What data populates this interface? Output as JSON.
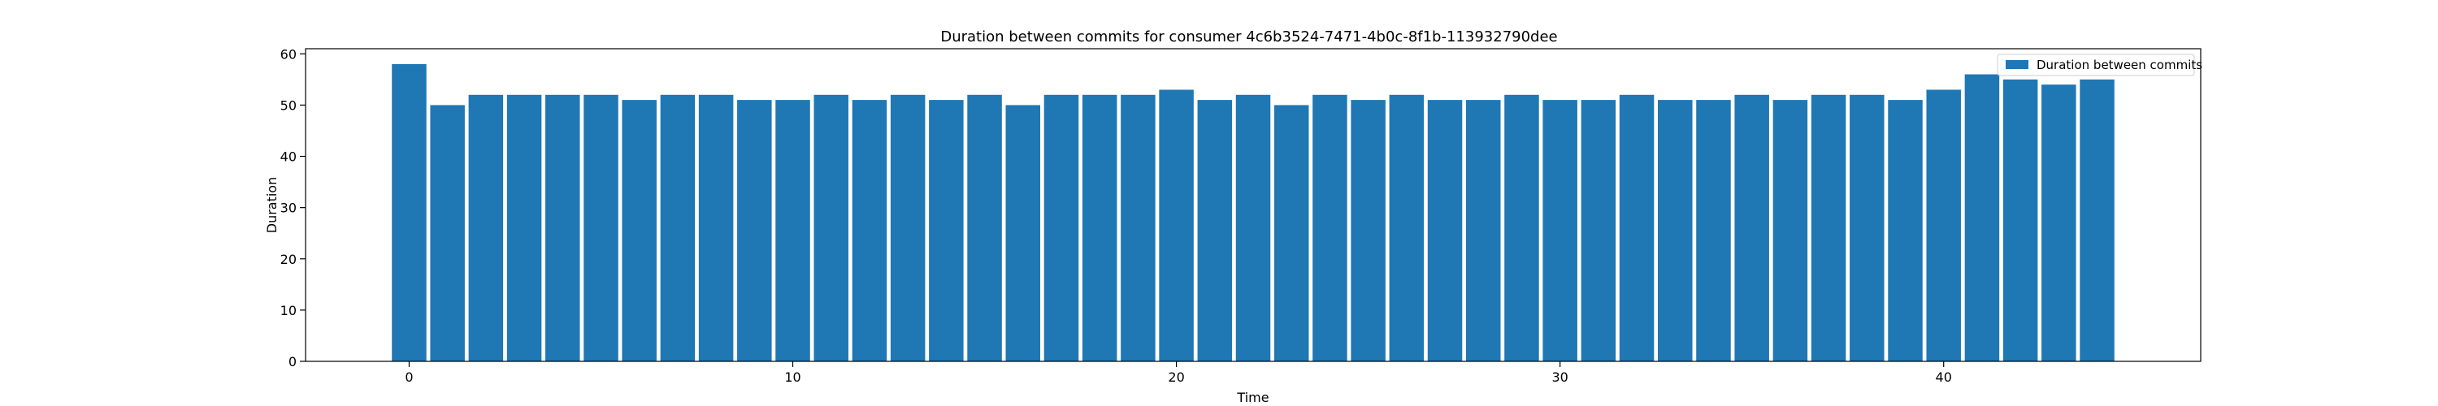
{
  "chart_data": {
    "type": "bar",
    "title": "Duration between commits for consumer 4c6b3524-7471-4b0c-8f1b-113932790dee",
    "xlabel": "Time",
    "ylabel": "Duration",
    "x": [
      0,
      1,
      2,
      3,
      4,
      5,
      6,
      7,
      8,
      9,
      10,
      11,
      12,
      13,
      14,
      15,
      16,
      17,
      18,
      19,
      20,
      21,
      22,
      23,
      24,
      25,
      26,
      27,
      28,
      29,
      30,
      31,
      32,
      33,
      34,
      35,
      36,
      37,
      38,
      39,
      40,
      41,
      42,
      43,
      44
    ],
    "series": [
      {
        "name": "Duration between commits",
        "color": "#1f77b4",
        "values": [
          58,
          50,
          52,
          52,
          52,
          52,
          51,
          52,
          52,
          51,
          51,
          52,
          51,
          52,
          51,
          52,
          50,
          52,
          52,
          52,
          53,
          51,
          52,
          50,
          52,
          51,
          52,
          51,
          51,
          52,
          51,
          51,
          52,
          51,
          51,
          52,
          51,
          52,
          52,
          51,
          53,
          56,
          55,
          54,
          55
        ]
      }
    ],
    "xlim": [
      -2.7,
      46.7
    ],
    "ylim": [
      0,
      61
    ],
    "xticks": [
      0,
      10,
      20,
      30,
      40
    ],
    "yticks": [
      0,
      10,
      20,
      30,
      40,
      50,
      60
    ],
    "grid": false,
    "legend_position": "top-right"
  }
}
